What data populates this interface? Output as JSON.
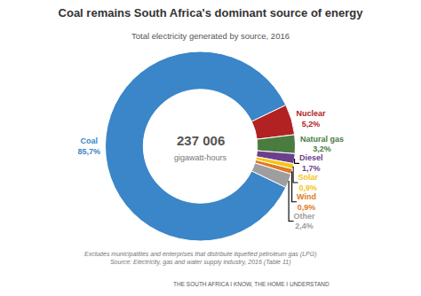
{
  "chart_data": {
    "type": "donut",
    "title": "Coal remains South Africa's dominant source of energy",
    "subtitle": "Total electricity generated by source, 2016",
    "categories": [
      "Coal",
      "Nuclear",
      "Natural gas",
      "Diesel",
      "Solar",
      "Wind",
      "Other"
    ],
    "values": [
      85.7,
      5.2,
      3.2,
      1.7,
      0.9,
      0.9,
      2.4
    ],
    "value_labels": [
      "85,7%",
      "5,2%",
      "3,2%",
      "1,7%",
      "0,9%",
      "0,9%",
      "2,4%"
    ],
    "colors": [
      "#3a86c8",
      "#b22222",
      "#4a7c3f",
      "#6a3f8c",
      "#f5c518",
      "#e07b20",
      "#9e9e9e"
    ],
    "data_labels": true,
    "annotations": [
      "237 006",
      "gigawatt-hours",
      "Excludes municipalities and enterprises that distribute liquefied petroleum gas (LPG)     Source: Electricity, gas and water supply industry, 2016 (Table 11)",
      "THE SOUTH AFRICA I KNOW, THE HOME I UNDERSTAND"
    ]
  }
}
